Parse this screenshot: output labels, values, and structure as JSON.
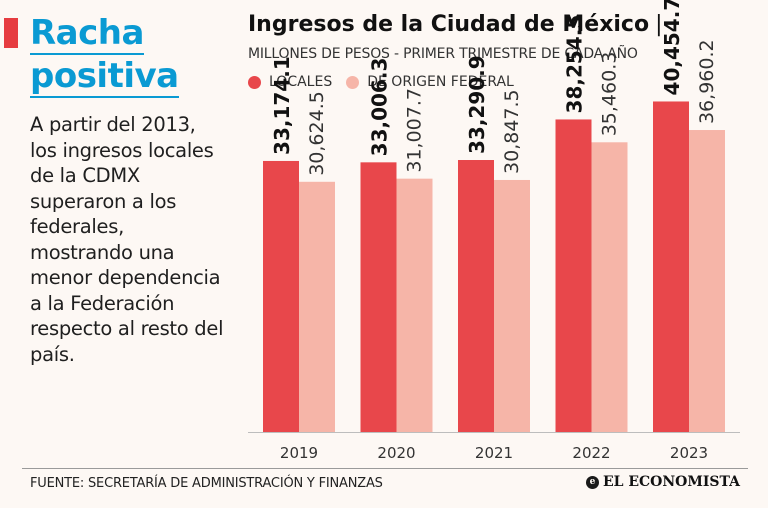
{
  "headline": {
    "line1": "Racha",
    "line2": "positiva"
  },
  "intro_text": "A partir del 2013, los ingresos locales de la CDMX superaron a los federales, mostrando una menor dependencia a la Federación respecto al resto del país.",
  "colors": {
    "accent": "#e63c40",
    "headline": "#0a9ad3",
    "locales": "#e8474b",
    "federal": "#f6b5a8",
    "background": "#fdf8f4"
  },
  "footer": {
    "source": "FUENTE: SECRETARÍA DE ADMINISTRACIÓN Y FINANZAS",
    "logo_text": "EL ECONOMISTA",
    "logo_mark": "e"
  },
  "chart_data": {
    "type": "bar",
    "title": "Ingresos de la Ciudad de México",
    "title_separator": "|",
    "subtitle": "MILLONES DE PESOS - PRIMER TRIMESTRE DE CADA AÑO",
    "categories": [
      "2019",
      "2020",
      "2021",
      "2022",
      "2023"
    ],
    "series": [
      {
        "name": "LOCALES",
        "values": [
          33174.1,
          33006.3,
          33290.9,
          38254.5,
          40454.7
        ],
        "labels": [
          "33,174.1",
          "33,006.3",
          "33,290.9",
          "38,254.5",
          "40,454.7"
        ]
      },
      {
        "name": "DE ORIGEN FEDERAL",
        "values": [
          30624.5,
          31007.7,
          30847.5,
          35460.3,
          36960.2
        ],
        "labels": [
          "30,624.5",
          "31,007.7",
          "30,847.5",
          "35,460.3",
          "36,960.2"
        ]
      }
    ],
    "xlabel": "",
    "ylabel": "",
    "ylim": [
      0,
      47000
    ],
    "grid": false,
    "legend": "top-left",
    "label_orientation": "vertical"
  }
}
